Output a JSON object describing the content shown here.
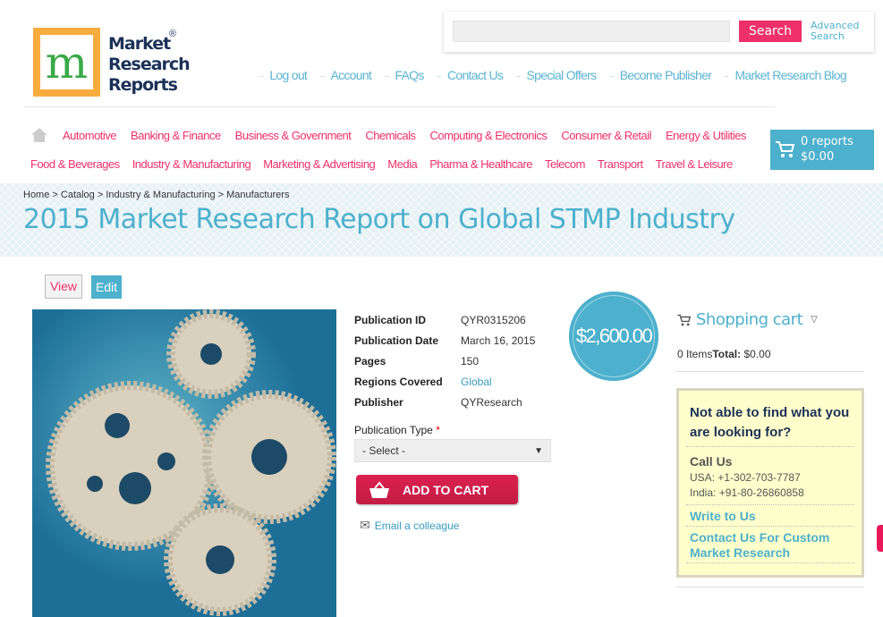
{
  "logo": {
    "text": [
      "Market",
      "Research",
      "Reports"
    ],
    "mark": "m",
    "registered": "®"
  },
  "search": {
    "placeholder": "",
    "button": "Search",
    "advanced": "Advanced Search"
  },
  "top_links": [
    "Log out",
    "Account",
    "FAQs",
    "Contact Us",
    "Special Offers",
    "Become Publisher",
    "Market Research Blog"
  ],
  "nav": {
    "row1": [
      "Automotive",
      "Banking & Finance",
      "Business & Government",
      "Chemicals",
      "Computing & Electronics",
      "Consumer & Retail",
      "Energy & Utilities"
    ],
    "row2": [
      "Food & Beverages",
      "Industry & Manufacturing",
      "Marketing & Advertising",
      "Media",
      "Pharma & Healthcare",
      "Telecom",
      "Transport",
      "Travel & Leisure"
    ]
  },
  "cart_box": {
    "reports": "0 reports",
    "total": "$0.00"
  },
  "breadcrumb": "Home > Catalog > Industry & Manufacturing > Manufacturers",
  "title": "2015 Market Research Report on Global STMP Industry",
  "tabs": {
    "view": "View",
    "edit": "Edit"
  },
  "details": [
    {
      "label": "Publication ID",
      "value": "QYR0315206"
    },
    {
      "label": "Publication Date",
      "value": "March 16, 2015"
    },
    {
      "label": "Pages",
      "value": "150"
    },
    {
      "label": "Regions Covered",
      "value": "Global"
    },
    {
      "label": "Publisher",
      "value": "QYResearch"
    }
  ],
  "price": "$2,600.00",
  "publication_type": {
    "label": "Publication Type",
    "required": "*",
    "selected": "- Select -"
  },
  "add_to_cart": "ADD TO CART",
  "email": "Email a colleague",
  "shopping_cart": {
    "title": "Shopping cart",
    "items": "0 Items",
    "total_label": "Total:",
    "total": "$0.00"
  },
  "help": {
    "heading": "Not able to find what you are looking for?",
    "call": "Call Us",
    "usa": "USA: +1-302-703-7787",
    "india": "India: +91-80-26860858",
    "write": "Write to Us",
    "custom": "Contact Us For Custom Market Research"
  },
  "colors": {
    "accent_pink": "#f0306a",
    "accent_blue": "#4db0cd",
    "navy": "#1b3158",
    "logo_orange": "#f8ac3e"
  }
}
